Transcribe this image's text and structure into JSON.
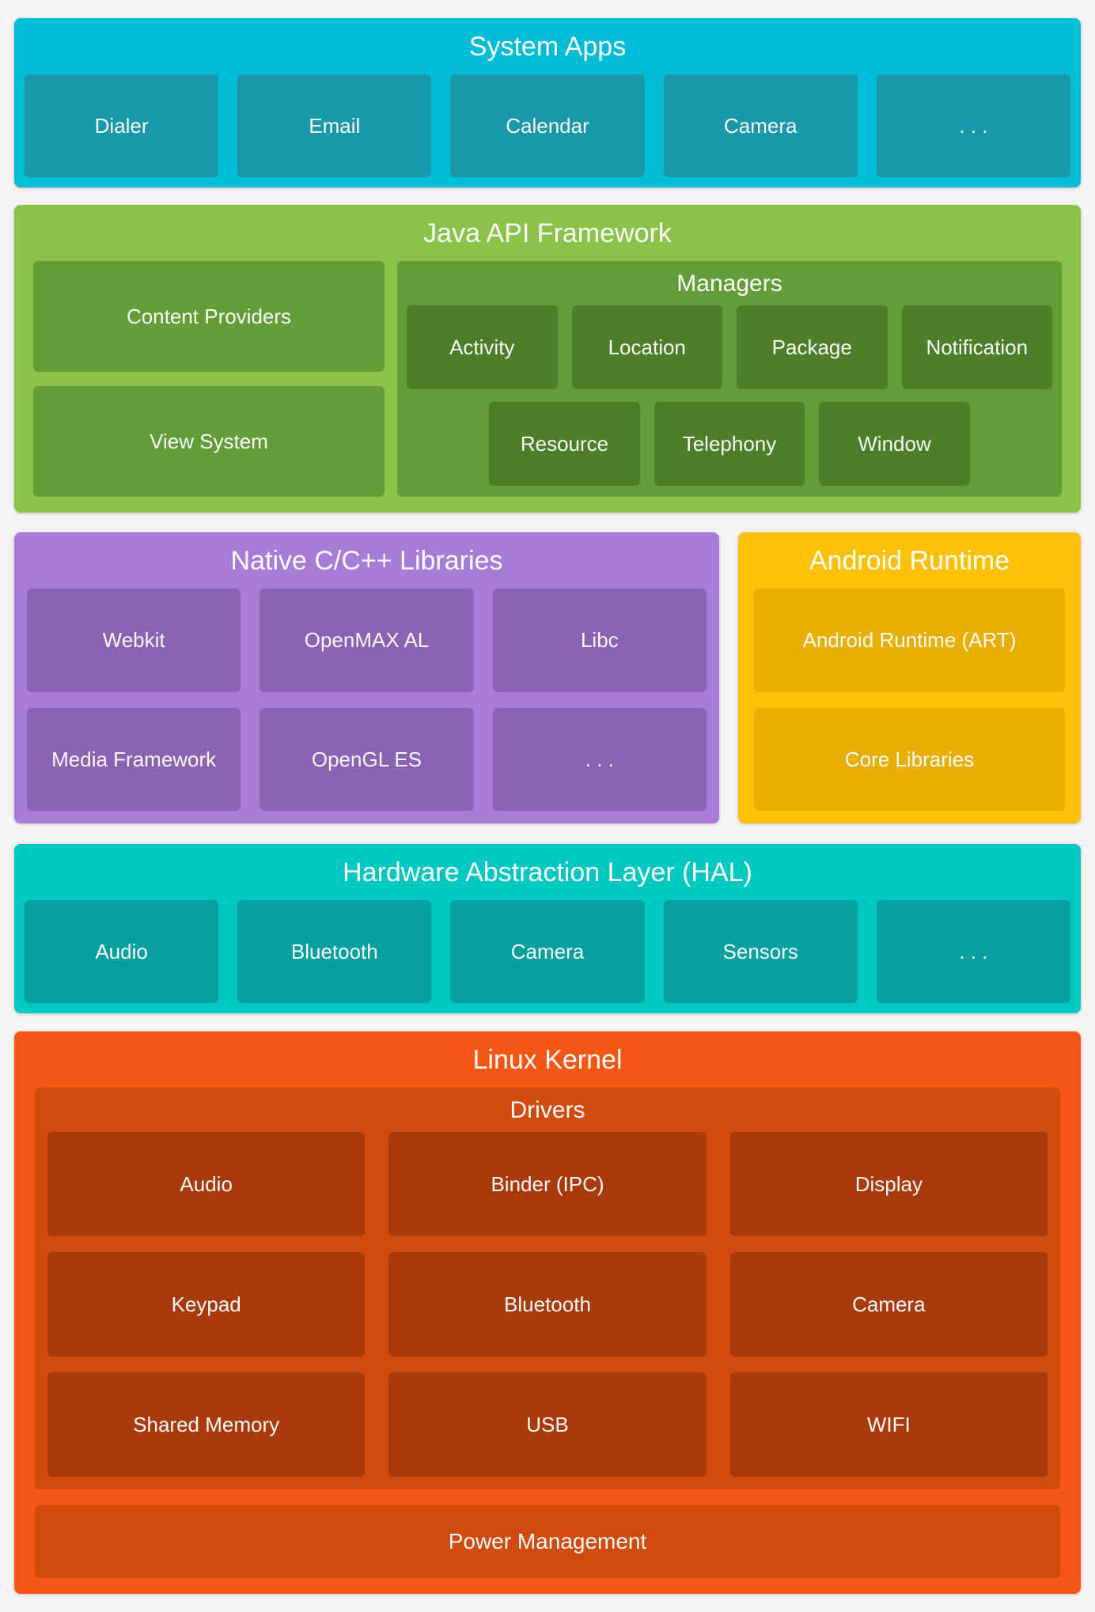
{
  "system_apps": {
    "title": "System Apps",
    "items": [
      "Dialer",
      "Email",
      "Calendar",
      "Camera",
      ". . ."
    ]
  },
  "java_api": {
    "title": "Java API Framework",
    "left_items": [
      "Content Providers",
      "View System"
    ],
    "managers": {
      "title": "Managers",
      "row1": [
        "Activity",
        "Location",
        "Package",
        "Notification"
      ],
      "row2": [
        "Resource",
        "Telephony",
        "Window"
      ]
    }
  },
  "native_libs": {
    "title": "Native C/C++ Libraries",
    "items": [
      "Webkit",
      "OpenMAX AL",
      "Libc",
      "Media Framework",
      "OpenGL ES",
      ". . ."
    ]
  },
  "android_runtime": {
    "title": "Android Runtime",
    "items": [
      "Android Runtime (ART)",
      "Core Libraries"
    ]
  },
  "hal": {
    "title": "Hardware Abstraction Layer (HAL)",
    "items": [
      "Audio",
      "Bluetooth",
      "Camera",
      "Sensors",
      ". . ."
    ]
  },
  "linux_kernel": {
    "title": "Linux Kernel",
    "drivers": {
      "title": "Drivers",
      "items": [
        "Audio",
        "Binder (IPC)",
        "Display",
        "Keypad",
        "Bluetooth",
        "Camera",
        "Shared Memory",
        "USB",
        "WIFI"
      ]
    },
    "power": "Power Management"
  },
  "colors": {
    "background": "#F4F4F4",
    "text": "#FFFFFF",
    "system_apps_band": "#00BCD4",
    "system_apps_box": "#1898A8",
    "java_band": "#8BC34A",
    "java_container": "#639D37",
    "java_box": "#4D7F2A",
    "native_band": "#A77CD9",
    "native_box": "#8A63B4",
    "runtime_band": "#FFC107",
    "runtime_box": "#E8AE00",
    "hal_band": "#00C8C0",
    "hal_box": "#06A0A0",
    "kernel_band": "#F65514",
    "kernel_container": "#D14A0E",
    "kernel_box": "#A93A0B"
  }
}
